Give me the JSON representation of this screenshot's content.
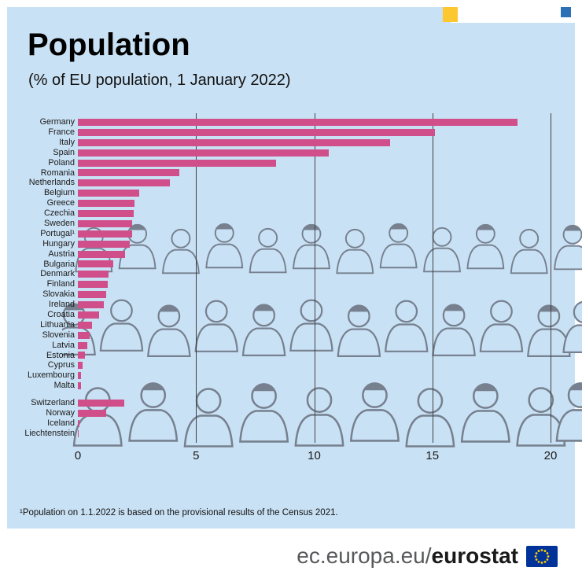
{
  "title": "Population",
  "subtitle": "(% of EU population, 1 January 2022)",
  "footnote": "¹Population on 1.1.2022 is based on the provisional results of the Census 2021.",
  "footer": {
    "url_prefix": "ec.europa.eu/",
    "brand": "eurostat",
    "flag_icon": "eu-flag-icon"
  },
  "colors": {
    "panel_background": "#c9e1f4",
    "bar": "#d04f8a",
    "gridline": "#404040",
    "crowd_line": "#76808f",
    "accent_yellow": "#fdc72f",
    "accent_blue": "#2d70b5",
    "flag_blue": "#003399",
    "flag_stars": "#ffcc00"
  },
  "chart_data": {
    "type": "bar",
    "orientation": "horizontal",
    "title": "Population",
    "subtitle": "(% of EU population, 1 January 2022)",
    "xlabel": "",
    "ylabel": "",
    "xlim": [
      0,
      20
    ],
    "x_ticks": [
      0,
      5,
      10,
      15,
      20
    ],
    "gridlines": [
      5,
      10,
      15,
      20
    ],
    "legend": "none",
    "groups": [
      {
        "name": "eu_members",
        "categories": [
          "Germany",
          "France",
          "Italy",
          "Spain",
          "Poland",
          "Romania",
          "Netherlands",
          "Belgium",
          "Greece",
          "Czechia",
          "Sweden",
          "Portugal¹",
          "Hungary",
          "Austria",
          "Bulgaria",
          "Denmark",
          "Finland",
          "Slovakia",
          "Ireland",
          "Croatia",
          "Lithuania",
          "Slovenia",
          "Latvia",
          "Estonia",
          "Cyprus",
          "Luxembourg",
          "Malta"
        ],
        "values": [
          18.6,
          15.1,
          13.2,
          10.6,
          8.4,
          4.3,
          3.9,
          2.6,
          2.4,
          2.35,
          2.3,
          2.3,
          2.2,
          2.0,
          1.5,
          1.3,
          1.25,
          1.2,
          1.1,
          0.9,
          0.6,
          0.5,
          0.4,
          0.3,
          0.2,
          0.14,
          0.12
        ]
      },
      {
        "name": "efta",
        "categories": [
          "Switzerland",
          "Norway",
          "Iceland",
          "Liechtenstein"
        ],
        "values": [
          1.95,
          1.2,
          0.08,
          0.01
        ]
      }
    ]
  }
}
